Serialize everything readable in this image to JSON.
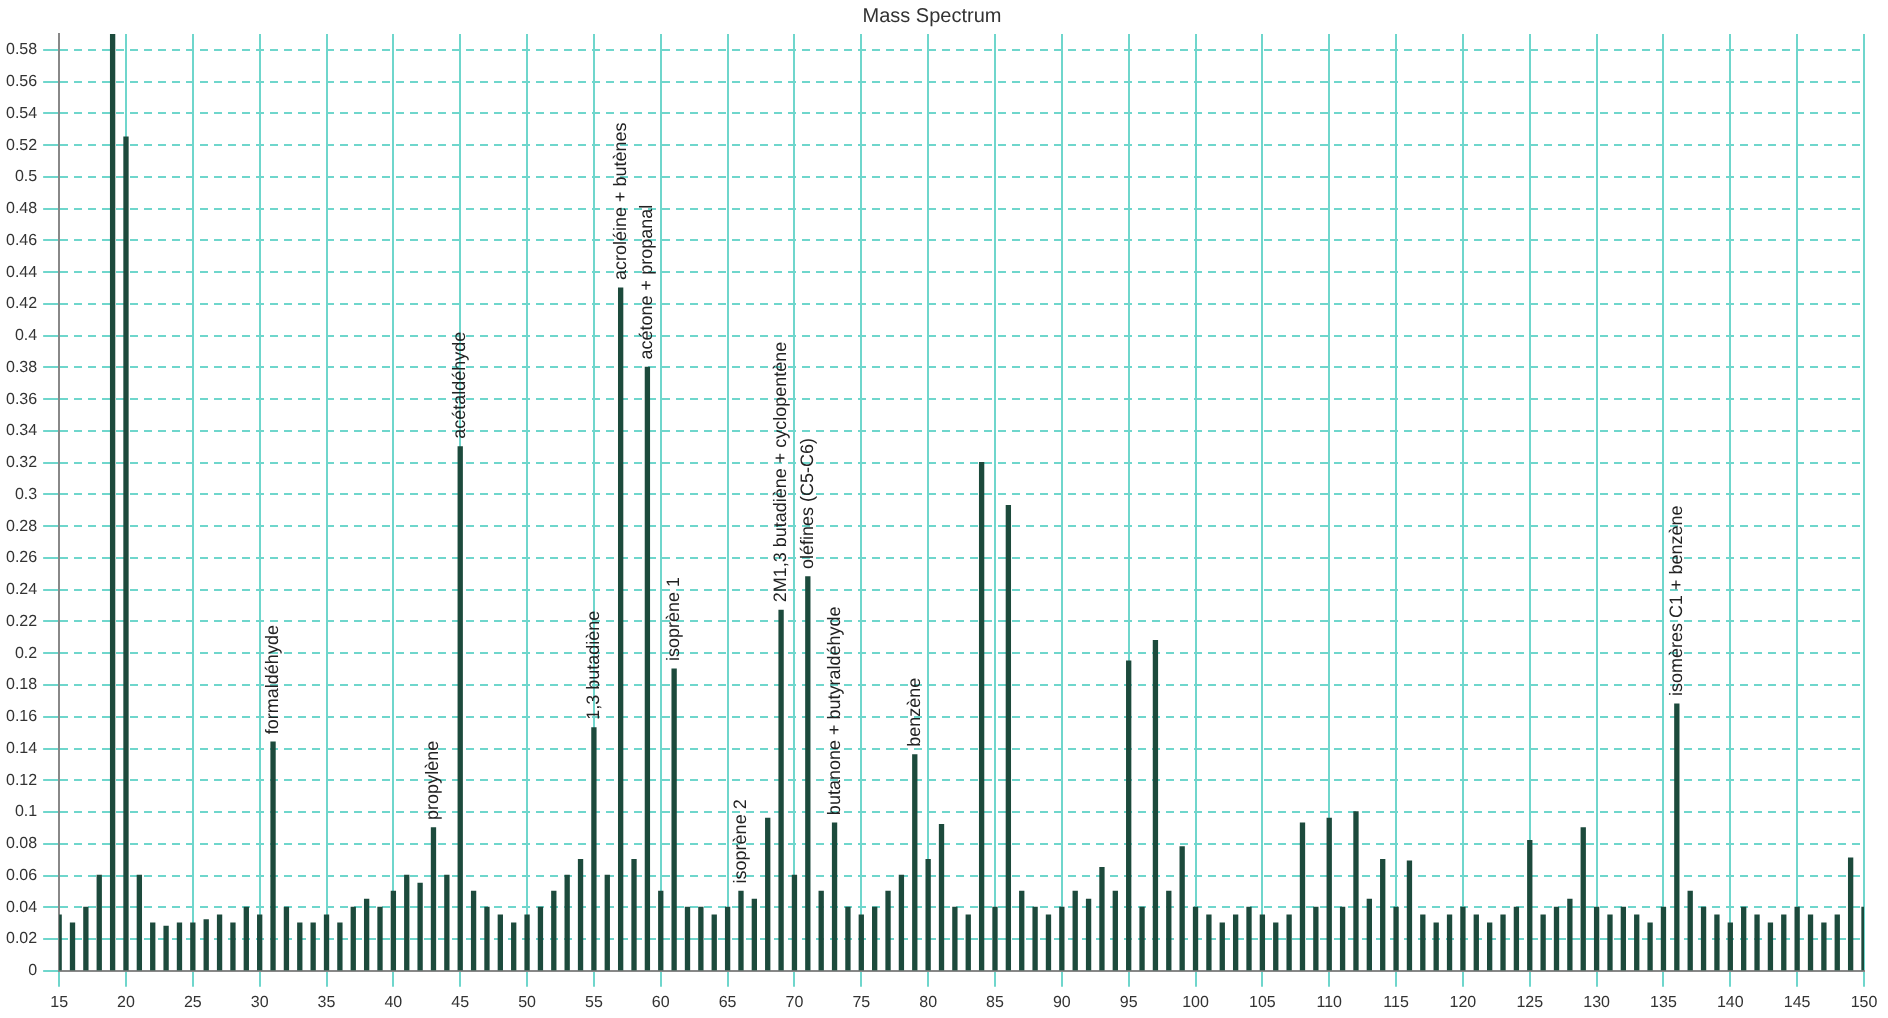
{
  "chart_data": {
    "type": "bar",
    "title": "Mass Spectrum",
    "x": [
      15,
      16,
      17,
      18,
      19,
      20,
      21,
      22,
      23,
      24,
      25,
      26,
      27,
      28,
      29,
      30,
      31,
      32,
      33,
      34,
      35,
      36,
      37,
      38,
      39,
      40,
      41,
      42,
      43,
      44,
      45,
      46,
      47,
      48,
      49,
      50,
      51,
      52,
      53,
      54,
      55,
      56,
      57,
      58,
      59,
      60,
      61,
      62,
      63,
      64,
      65,
      66,
      67,
      68,
      69,
      70,
      71,
      72,
      73,
      74,
      75,
      76,
      77,
      78,
      79,
      80,
      81,
      82,
      83,
      84,
      85,
      86,
      87,
      88,
      89,
      90,
      91,
      92,
      93,
      94,
      95,
      96,
      97,
      98,
      99,
      100,
      101,
      102,
      103,
      104,
      105,
      106,
      107,
      108,
      109,
      110,
      111,
      112,
      113,
      114,
      115,
      116,
      117,
      118,
      119,
      120,
      121,
      122,
      123,
      124,
      125,
      126,
      127,
      128,
      129,
      130,
      131,
      132,
      133,
      134,
      135,
      136,
      137,
      138,
      139,
      140,
      141,
      142,
      143,
      144,
      145,
      146,
      147,
      148,
      149,
      150
    ],
    "series": [
      {
        "color": "#1c4a3c",
        "values": [
          0.035,
          0.03,
          0.04,
          0.06,
          0.59,
          0.525,
          0.06,
          0.03,
          0.028,
          0.03,
          0.03,
          0.032,
          0.035,
          0.03,
          0.04,
          0.035,
          0.144,
          0.04,
          0.03,
          0.03,
          0.035,
          0.03,
          0.04,
          0.045,
          0.04,
          0.05,
          0.06,
          0.055,
          0.09,
          0.06,
          0.33,
          0.05,
          0.04,
          0.035,
          0.03,
          0.035,
          0.04,
          0.05,
          0.06,
          0.07,
          0.153,
          0.06,
          0.43,
          0.07,
          0.38,
          0.05,
          0.19,
          0.04,
          0.04,
          0.035,
          0.04,
          0.05,
          0.045,
          0.096,
          0.227,
          0.06,
          0.248,
          0.05,
          0.093,
          0.04,
          0.035,
          0.04,
          0.05,
          0.06,
          0.136,
          0.07,
          0.092,
          0.04,
          0.035,
          0.32,
          0.04,
          0.293,
          0.05,
          0.04,
          0.035,
          0.04,
          0.05,
          0.045,
          0.065,
          0.05,
          0.195,
          0.04,
          0.208,
          0.05,
          0.078,
          0.04,
          0.035,
          0.03,
          0.035,
          0.04,
          0.035,
          0.03,
          0.035,
          0.093,
          0.04,
          0.096,
          0.04,
          0.1,
          0.045,
          0.07,
          0.04,
          0.069,
          0.035,
          0.03,
          0.035,
          0.04,
          0.035,
          0.03,
          0.035,
          0.04,
          0.082,
          0.035,
          0.04,
          0.045,
          0.09,
          0.04,
          0.035,
          0.04,
          0.035,
          0.03,
          0.04,
          0.168,
          0.05,
          0.04,
          0.035,
          0.03,
          0.04,
          0.035,
          0.03,
          0.035,
          0.04,
          0.035,
          0.03,
          0.035,
          0.071,
          0.04
        ]
      }
    ],
    "xlim": [
      15,
      150
    ],
    "xticks": [
      15,
      20,
      25,
      30,
      35,
      40,
      45,
      50,
      55,
      60,
      65,
      70,
      75,
      80,
      85,
      90,
      95,
      100,
      105,
      110,
      115,
      120,
      125,
      130,
      135,
      140,
      145,
      150
    ],
    "ylim": [
      0,
      0.59
    ],
    "yticks": [
      0,
      0.02,
      0.04,
      0.06,
      0.08,
      0.1,
      0.12,
      0.14,
      0.16,
      0.18,
      0.2,
      0.22,
      0.24,
      0.26,
      0.28,
      0.3,
      0.32,
      0.34,
      0.36,
      0.38,
      0.4,
      0.42,
      0.44,
      0.46,
      0.48,
      0.5,
      0.52,
      0.54,
      0.56,
      0.58
    ],
    "grid": true,
    "annotations": [
      {
        "text": "formaldéhyde",
        "x": 31,
        "y": 0.144
      },
      {
        "text": "propylène",
        "x": 43,
        "y": 0.09
      },
      {
        "text": "acétaldéhyde",
        "x": 45,
        "y": 0.33
      },
      {
        "text": "1,3 butadiène",
        "x": 55,
        "y": 0.153
      },
      {
        "text": "acroléine + butènes",
        "x": 57,
        "y": 0.43
      },
      {
        "text": "acétone + propanal",
        "x": 59,
        "y": 0.38
      },
      {
        "text": "isoprène 1",
        "x": 61,
        "y": 0.19
      },
      {
        "text": "isoprène 2",
        "x": 66,
        "y": 0.05
      },
      {
        "text": "2M1,3 butadiène + cyclopentène",
        "x": 69,
        "y": 0.227
      },
      {
        "text": "oléfines (C5-C6)",
        "x": 71,
        "y": 0.248
      },
      {
        "text": "butanone + butyraldéhyde",
        "x": 73,
        "y": 0.093
      },
      {
        "text": "benzène",
        "x": 79,
        "y": 0.136
      },
      {
        "text": "isomères C1 + benzène",
        "x": 136,
        "y": 0.168
      }
    ]
  }
}
